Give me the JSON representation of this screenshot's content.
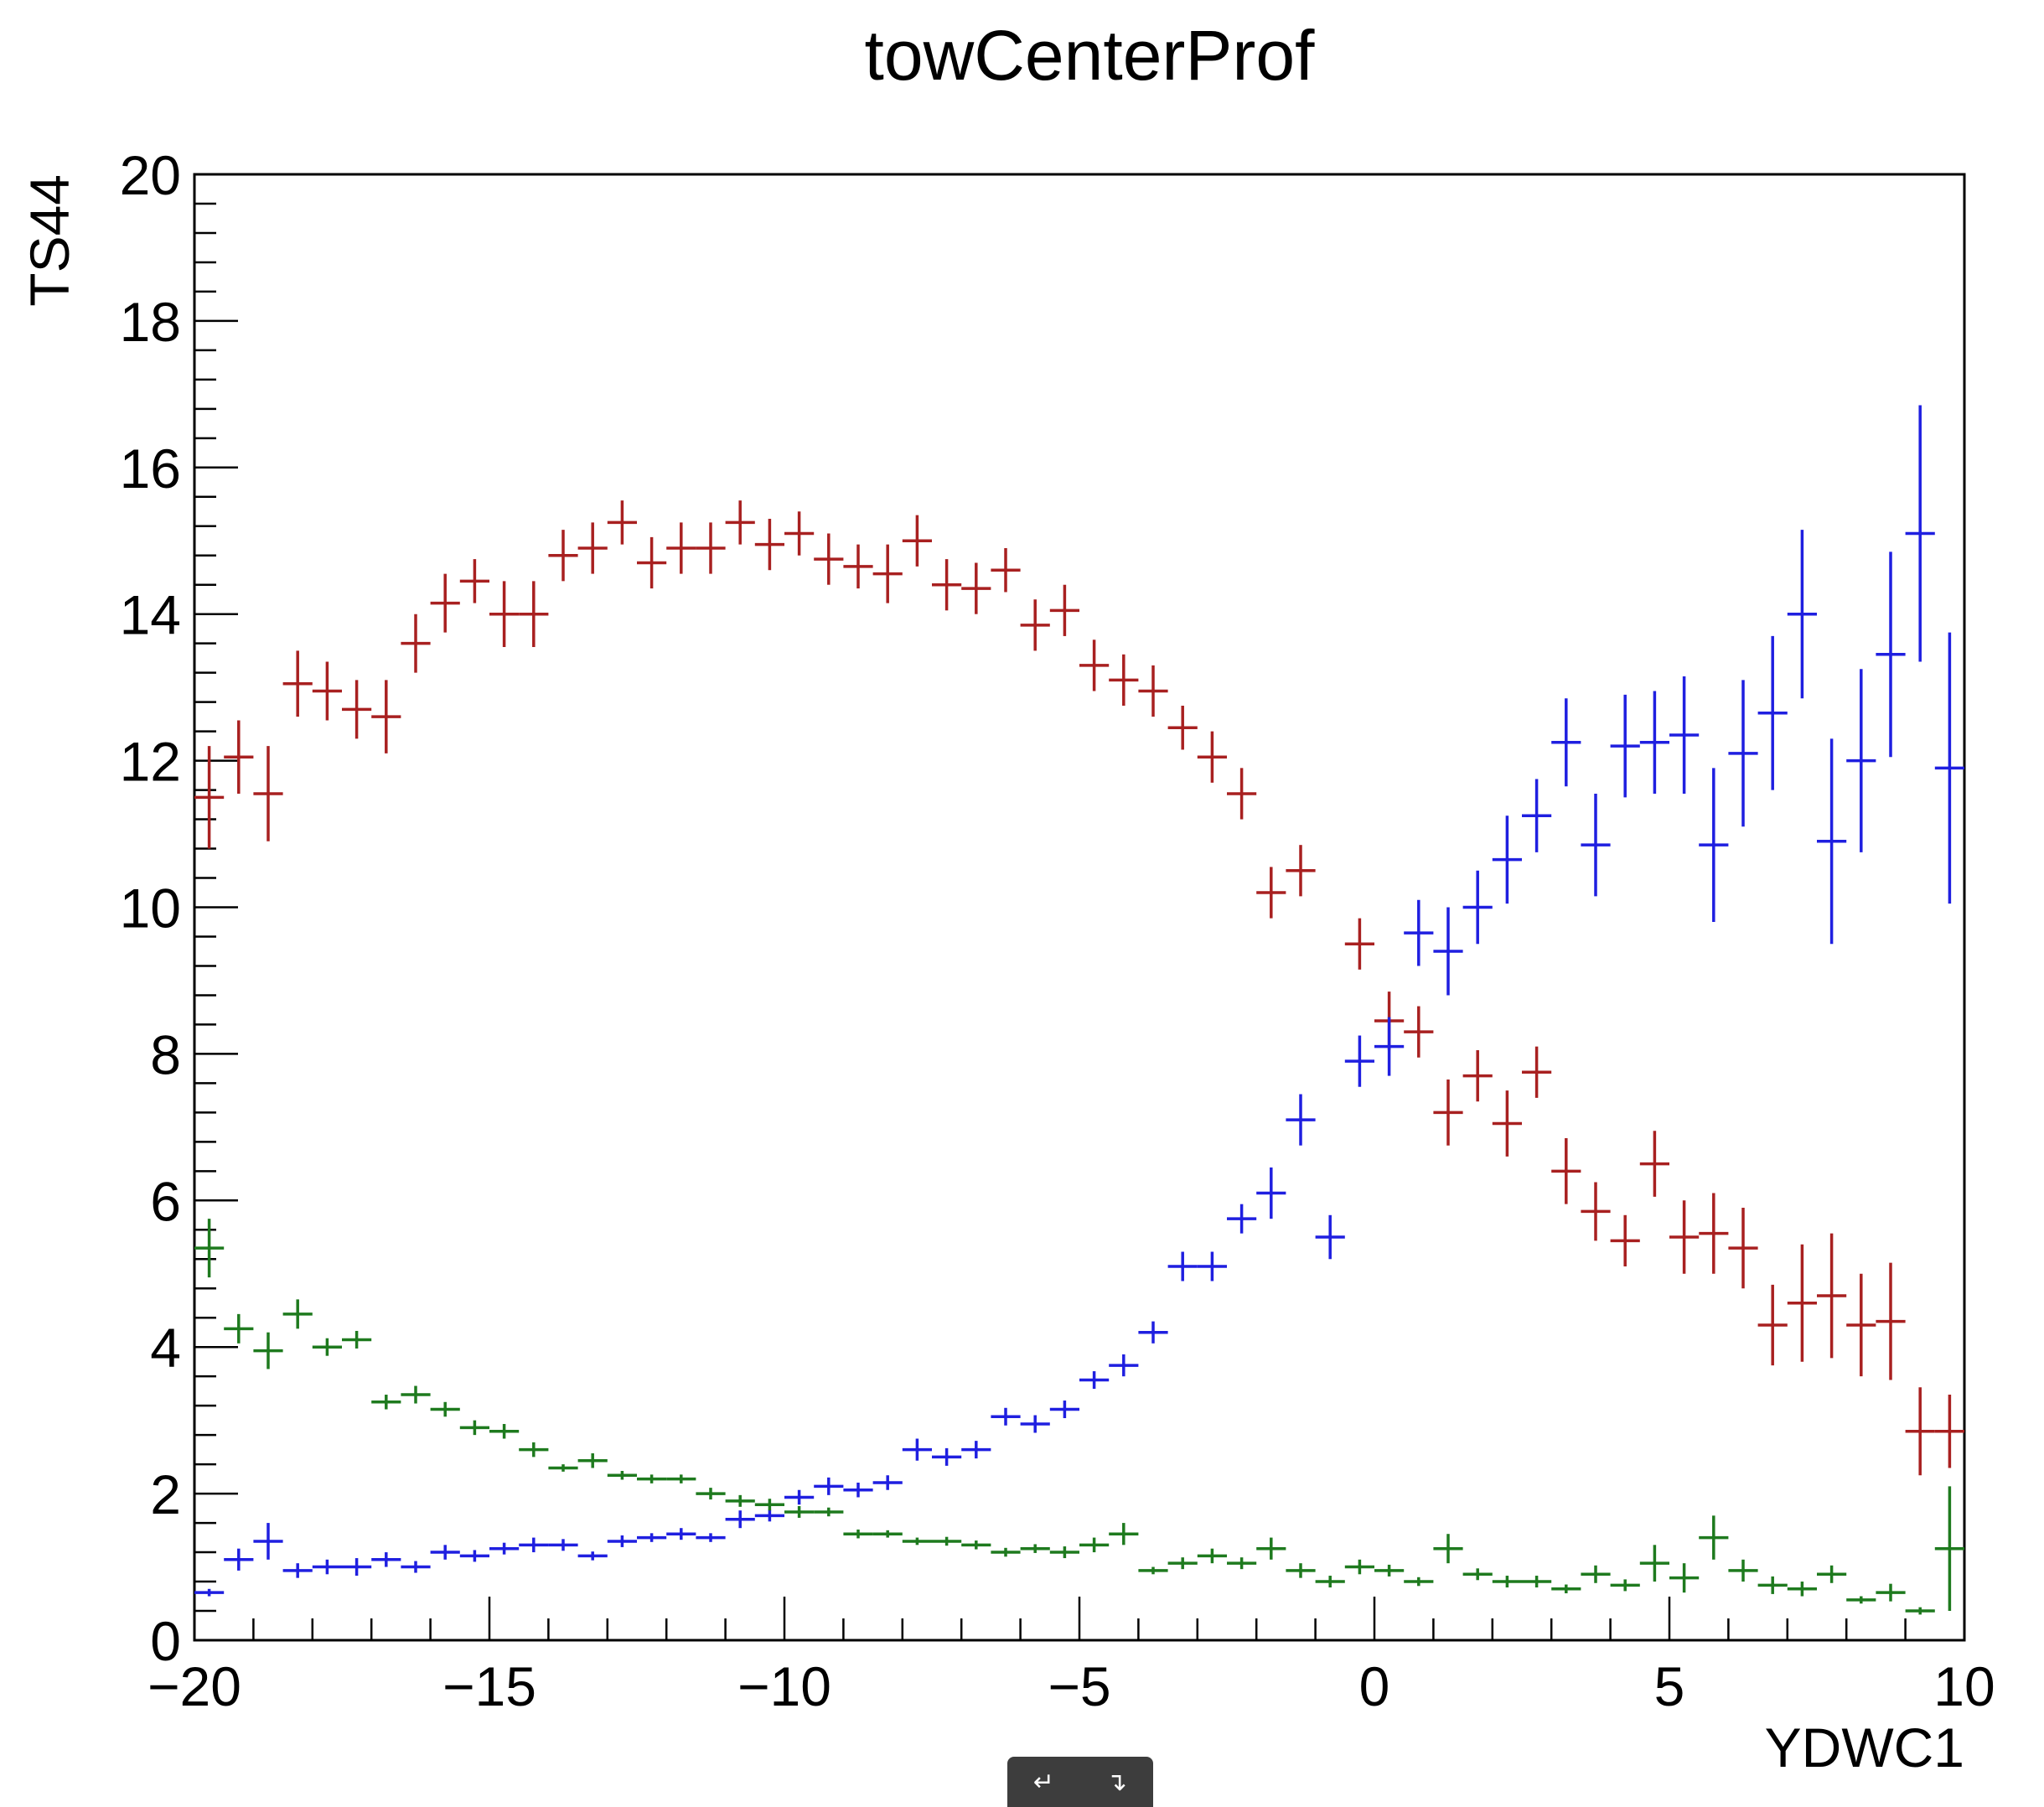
{
  "chart_data": {
    "type": "scatter",
    "title": "towCenterProf",
    "xlabel": "YDWC1",
    "ylabel": "TS44",
    "xlim": [
      -20,
      10
    ],
    "ylim": [
      0,
      20
    ],
    "x_ticks": [
      -20,
      -15,
      -10,
      -5,
      0,
      5,
      10
    ],
    "x_tick_labels": [
      "−20",
      "−15",
      "−10",
      "−5",
      "0",
      "5",
      "10"
    ],
    "y_ticks": [
      0,
      2,
      4,
      6,
      8,
      10,
      12,
      14,
      16,
      18,
      20
    ],
    "y_tick_labels": [
      "0",
      "2",
      "4",
      "6",
      "8",
      "10",
      "12",
      "14",
      "16",
      "18",
      "20"
    ],
    "grid": false,
    "x_bin_half_width": 0.25,
    "series": [
      {
        "color": "#a82020",
        "points": [
          [
            -19.75,
            11.5,
            0.7
          ],
          [
            -19.25,
            12.05,
            0.5
          ],
          [
            -18.75,
            11.55,
            0.65
          ],
          [
            -18.25,
            13.05,
            0.45
          ],
          [
            -17.75,
            12.95,
            0.4
          ],
          [
            -17.25,
            12.7,
            0.4
          ],
          [
            -16.75,
            12.6,
            0.5
          ],
          [
            -16.25,
            13.6,
            0.4
          ],
          [
            -15.75,
            14.15,
            0.4
          ],
          [
            -15.25,
            14.45,
            0.3
          ],
          [
            -14.75,
            14.0,
            0.45
          ],
          [
            -14.25,
            14.0,
            0.45
          ],
          [
            -13.75,
            14.8,
            0.35
          ],
          [
            -13.25,
            14.9,
            0.35
          ],
          [
            -12.75,
            15.25,
            0.3
          ],
          [
            -12.25,
            14.7,
            0.35
          ],
          [
            -11.75,
            14.9,
            0.35
          ],
          [
            -11.25,
            14.9,
            0.35
          ],
          [
            -10.75,
            15.25,
            0.3
          ],
          [
            -10.25,
            14.95,
            0.35
          ],
          [
            -9.75,
            15.1,
            0.3
          ],
          [
            -9.25,
            14.75,
            0.35
          ],
          [
            -8.75,
            14.65,
            0.3
          ],
          [
            -8.25,
            14.55,
            0.4
          ],
          [
            -7.75,
            15.0,
            0.35
          ],
          [
            -7.25,
            14.4,
            0.35
          ],
          [
            -6.75,
            14.35,
            0.35
          ],
          [
            -6.25,
            14.6,
            0.3
          ],
          [
            -5.75,
            13.85,
            0.35
          ],
          [
            -5.25,
            14.05,
            0.35
          ],
          [
            -4.75,
            13.3,
            0.35
          ],
          [
            -4.25,
            13.1,
            0.35
          ],
          [
            -3.75,
            12.95,
            0.35
          ],
          [
            -3.25,
            12.45,
            0.3
          ],
          [
            -2.75,
            12.05,
            0.35
          ],
          [
            -2.25,
            11.55,
            0.35
          ],
          [
            -1.75,
            10.2,
            0.35
          ],
          [
            -1.25,
            10.5,
            0.35
          ],
          [
            -0.25,
            9.5,
            0.35
          ],
          [
            0.25,
            8.45,
            0.4
          ],
          [
            0.75,
            8.3,
            0.35
          ],
          [
            1.25,
            7.2,
            0.45
          ],
          [
            1.75,
            7.7,
            0.35
          ],
          [
            2.25,
            7.05,
            0.45
          ],
          [
            2.75,
            7.75,
            0.35
          ],
          [
            3.25,
            6.4,
            0.45
          ],
          [
            3.75,
            5.85,
            0.4
          ],
          [
            4.25,
            5.45,
            0.35
          ],
          [
            4.75,
            6.5,
            0.45
          ],
          [
            5.25,
            5.5,
            0.5
          ],
          [
            5.75,
            5.55,
            0.55
          ],
          [
            6.25,
            5.35,
            0.55
          ],
          [
            6.75,
            4.3,
            0.55
          ],
          [
            7.25,
            4.6,
            0.8
          ],
          [
            7.75,
            4.7,
            0.85
          ],
          [
            8.25,
            4.3,
            0.7
          ],
          [
            8.75,
            4.35,
            0.8
          ],
          [
            9.25,
            2.85,
            0.6
          ],
          [
            9.75,
            2.85,
            0.5
          ]
        ]
      },
      {
        "color": "#1f1fe0",
        "points": [
          [
            -19.75,
            0.65,
            0.05
          ],
          [
            -19.25,
            1.1,
            0.15
          ],
          [
            -18.75,
            1.35,
            0.25
          ],
          [
            -18.25,
            0.95,
            0.1
          ],
          [
            -17.75,
            1.0,
            0.1
          ],
          [
            -17.25,
            1.0,
            0.12
          ],
          [
            -16.75,
            1.1,
            0.1
          ],
          [
            -16.25,
            1.0,
            0.08
          ],
          [
            -15.75,
            1.2,
            0.1
          ],
          [
            -15.25,
            1.15,
            0.08
          ],
          [
            -14.75,
            1.25,
            0.08
          ],
          [
            -14.25,
            1.3,
            0.1
          ],
          [
            -13.75,
            1.3,
            0.08
          ],
          [
            -13.25,
            1.15,
            0.06
          ],
          [
            -12.75,
            1.35,
            0.08
          ],
          [
            -12.25,
            1.4,
            0.06
          ],
          [
            -11.75,
            1.45,
            0.08
          ],
          [
            -11.25,
            1.4,
            0.06
          ],
          [
            -10.75,
            1.65,
            0.12
          ],
          [
            -10.25,
            1.7,
            0.08
          ],
          [
            -9.75,
            1.95,
            0.1
          ],
          [
            -9.25,
            2.1,
            0.12
          ],
          [
            -8.75,
            2.05,
            0.1
          ],
          [
            -8.25,
            2.15,
            0.1
          ],
          [
            -7.75,
            2.6,
            0.15
          ],
          [
            -7.25,
            2.5,
            0.12
          ],
          [
            -6.75,
            2.6,
            0.12
          ],
          [
            -6.25,
            3.05,
            0.12
          ],
          [
            -5.75,
            2.95,
            0.12
          ],
          [
            -5.25,
            3.15,
            0.12
          ],
          [
            -4.75,
            3.55,
            0.12
          ],
          [
            -4.25,
            3.75,
            0.15
          ],
          [
            -3.75,
            4.2,
            0.15
          ],
          [
            -3.25,
            5.1,
            0.2
          ],
          [
            -2.75,
            5.1,
            0.2
          ],
          [
            -2.25,
            5.75,
            0.2
          ],
          [
            -1.75,
            6.1,
            0.35
          ],
          [
            -1.25,
            7.1,
            0.35
          ],
          [
            -0.75,
            5.5,
            0.3
          ],
          [
            -0.25,
            7.9,
            0.35
          ],
          [
            0.25,
            8.1,
            0.4
          ],
          [
            0.75,
            9.65,
            0.45
          ],
          [
            1.25,
            9.4,
            0.6
          ],
          [
            1.75,
            10.0,
            0.5
          ],
          [
            2.25,
            10.65,
            0.6
          ],
          [
            2.75,
            11.25,
            0.5
          ],
          [
            3.25,
            12.25,
            0.6
          ],
          [
            3.75,
            10.85,
            0.7
          ],
          [
            4.25,
            12.2,
            0.7
          ],
          [
            4.75,
            12.25,
            0.7
          ],
          [
            5.25,
            12.35,
            0.8
          ],
          [
            5.75,
            10.85,
            1.05
          ],
          [
            6.25,
            12.1,
            1.0
          ],
          [
            6.75,
            12.65,
            1.05
          ],
          [
            7.25,
            14.0,
            1.15
          ],
          [
            7.75,
            10.9,
            1.4
          ],
          [
            8.25,
            12.0,
            1.25
          ],
          [
            8.75,
            13.45,
            1.4
          ],
          [
            9.25,
            15.1,
            1.75
          ],
          [
            9.75,
            11.9,
            1.85
          ]
        ]
      },
      {
        "color": "#1e7a1e",
        "points": [
          [
            -19.75,
            5.35,
            0.4
          ],
          [
            -19.25,
            4.25,
            0.2
          ],
          [
            -18.75,
            3.95,
            0.25
          ],
          [
            -18.25,
            4.45,
            0.2
          ],
          [
            -17.75,
            4.0,
            0.12
          ],
          [
            -17.25,
            4.1,
            0.12
          ],
          [
            -16.75,
            3.25,
            0.1
          ],
          [
            -16.25,
            3.35,
            0.12
          ],
          [
            -15.75,
            3.15,
            0.1
          ],
          [
            -15.25,
            2.9,
            0.1
          ],
          [
            -14.75,
            2.85,
            0.1
          ],
          [
            -14.25,
            2.6,
            0.1
          ],
          [
            -13.75,
            2.35,
            0.05
          ],
          [
            -13.25,
            2.45,
            0.1
          ],
          [
            -12.75,
            2.25,
            0.06
          ],
          [
            -12.25,
            2.2,
            0.06
          ],
          [
            -11.75,
            2.2,
            0.06
          ],
          [
            -11.25,
            2.0,
            0.08
          ],
          [
            -10.75,
            1.9,
            0.08
          ],
          [
            -10.25,
            1.85,
            0.08
          ],
          [
            -9.75,
            1.75,
            0.08
          ],
          [
            -9.25,
            1.75,
            0.06
          ],
          [
            -8.75,
            1.45,
            0.06
          ],
          [
            -8.25,
            1.45,
            0.05
          ],
          [
            -7.75,
            1.35,
            0.05
          ],
          [
            -7.25,
            1.35,
            0.06
          ],
          [
            -6.75,
            1.3,
            0.06
          ],
          [
            -6.25,
            1.2,
            0.06
          ],
          [
            -5.75,
            1.25,
            0.06
          ],
          [
            -5.25,
            1.2,
            0.08
          ],
          [
            -4.75,
            1.3,
            0.1
          ],
          [
            -4.25,
            1.45,
            0.15
          ],
          [
            -3.75,
            0.95,
            0.05
          ],
          [
            -3.25,
            1.05,
            0.08
          ],
          [
            -2.75,
            1.15,
            0.1
          ],
          [
            -2.25,
            1.05,
            0.08
          ],
          [
            -1.75,
            1.25,
            0.15
          ],
          [
            -1.25,
            0.95,
            0.1
          ],
          [
            -0.75,
            0.8,
            0.08
          ],
          [
            -0.25,
            1.0,
            0.1
          ],
          [
            0.25,
            0.95,
            0.08
          ],
          [
            0.75,
            0.8,
            0.06
          ],
          [
            1.25,
            1.25,
            0.2
          ],
          [
            1.75,
            0.9,
            0.08
          ],
          [
            2.25,
            0.8,
            0.08
          ],
          [
            2.75,
            0.8,
            0.08
          ],
          [
            3.25,
            0.7,
            0.06
          ],
          [
            3.75,
            0.9,
            0.12
          ],
          [
            4.25,
            0.75,
            0.08
          ],
          [
            4.75,
            1.05,
            0.25
          ],
          [
            5.25,
            0.85,
            0.2
          ],
          [
            5.75,
            1.4,
            0.3
          ],
          [
            6.25,
            0.95,
            0.15
          ],
          [
            6.75,
            0.75,
            0.12
          ],
          [
            7.25,
            0.7,
            0.1
          ],
          [
            7.75,
            0.9,
            0.12
          ],
          [
            8.25,
            0.55,
            0.05
          ],
          [
            8.75,
            0.65,
            0.12
          ],
          [
            9.25,
            0.4,
            0.05
          ],
          [
            9.75,
            1.25,
            0.85
          ]
        ]
      }
    ]
  },
  "toolbar": {
    "undo_glyph": "↵",
    "redo_glyph": "↴"
  }
}
